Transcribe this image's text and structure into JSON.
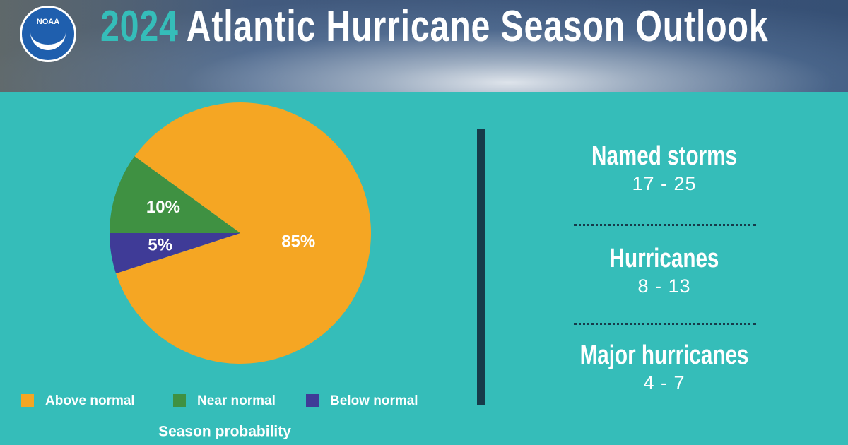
{
  "header": {
    "logo": "NOAA",
    "title_year": "2024",
    "title": "Atlantic Hurricane Season Outlook"
  },
  "chart_data": {
    "type": "pie",
    "categories": [
      "Above normal",
      "Near normal",
      "Below normal"
    ],
    "values": [
      85,
      10,
      5
    ],
    "value_labels": [
      "85%",
      "10%",
      "5%"
    ],
    "colors": [
      "#f5a623",
      "#3f9142",
      "#3f3b97"
    ],
    "caption": "Season probability"
  },
  "stats": [
    {
      "label": "Named storms",
      "value": "17 - 25"
    },
    {
      "label": "Hurricanes",
      "value": "8 - 13"
    },
    {
      "label": "Major hurricanes",
      "value": "4 - 7"
    }
  ]
}
